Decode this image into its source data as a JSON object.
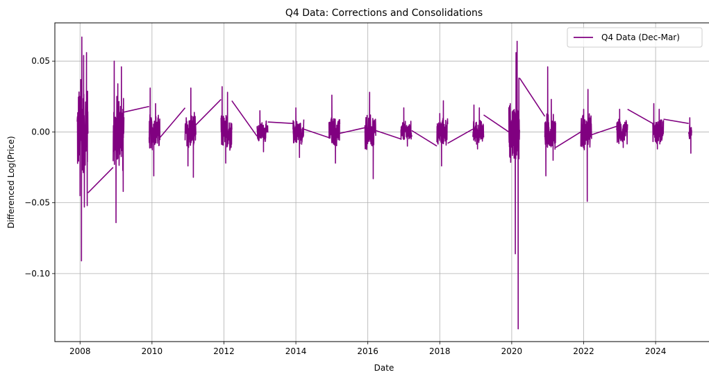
{
  "chart_data": {
    "type": "line",
    "title": "Q4 Data: Corrections and Consolidations",
    "xlabel": "Date",
    "ylabel": "Differenced Log(Price)",
    "xlim": [
      2007.3,
      2025.6
    ],
    "ylim": [
      -0.148,
      0.077
    ],
    "x_ticks": [
      2008,
      2010,
      2012,
      2014,
      2016,
      2018,
      2020,
      2022,
      2024
    ],
    "y_ticks": [
      0.05,
      0.0,
      -0.05,
      -0.1
    ],
    "y_tick_labels": [
      "0.05",
      "0.00",
      "−0.05",
      "−0.10"
    ],
    "grid": true,
    "legend_position": "top-right",
    "series": [
      {
        "name": "Q4 Data (Dec-Mar)",
        "color": "#800080",
        "seasons": [
          {
            "start": 2007.92,
            "end": 2008.22,
            "amp": 0.03,
            "spikes": [
              [
                2008.0,
                -0.045
              ],
              [
                2008.02,
                0.037
              ],
              [
                2008.04,
                -0.091
              ],
              [
                2008.05,
                0.067
              ],
              [
                2008.1,
                0.054
              ],
              [
                2008.12,
                -0.053
              ],
              [
                2008.18,
                0.056
              ],
              [
                2008.2,
                -0.052
              ]
            ]
          },
          {
            "start": 2008.92,
            "end": 2009.22,
            "amp": 0.025,
            "spikes": [
              [
                2008.95,
                0.05
              ],
              [
                2009.0,
                -0.064
              ],
              [
                2009.05,
                0.034
              ],
              [
                2009.15,
                0.046
              ],
              [
                2009.2,
                -0.042
              ]
            ]
          },
          {
            "start": 2009.92,
            "end": 2010.22,
            "amp": 0.012,
            "spikes": [
              [
                2009.95,
                0.031
              ],
              [
                2010.05,
                -0.031
              ],
              [
                2010.1,
                0.02
              ]
            ]
          },
          {
            "start": 2010.92,
            "end": 2011.22,
            "amp": 0.012,
            "spikes": [
              [
                2011.0,
                -0.024
              ],
              [
                2011.08,
                0.031
              ],
              [
                2011.15,
                -0.032
              ]
            ]
          },
          {
            "start": 2011.92,
            "end": 2012.22,
            "amp": 0.012,
            "spikes": [
              [
                2011.95,
                0.032
              ],
              [
                2012.05,
                -0.022
              ],
              [
                2012.1,
                0.028
              ]
            ]
          },
          {
            "start": 2012.92,
            "end": 2013.22,
            "amp": 0.007,
            "spikes": [
              [
                2013.0,
                0.015
              ],
              [
                2013.1,
                -0.014
              ]
            ]
          },
          {
            "start": 2013.92,
            "end": 2014.22,
            "amp": 0.008,
            "spikes": [
              [
                2014.0,
                0.017
              ],
              [
                2014.1,
                -0.018
              ]
            ]
          },
          {
            "start": 2014.92,
            "end": 2015.22,
            "amp": 0.01,
            "spikes": [
              [
                2015.0,
                0.026
              ],
              [
                2015.1,
                -0.022
              ]
            ]
          },
          {
            "start": 2015.92,
            "end": 2016.22,
            "amp": 0.012,
            "spikes": [
              [
                2016.05,
                0.028
              ],
              [
                2016.15,
                -0.033
              ]
            ]
          },
          {
            "start": 2016.92,
            "end": 2017.22,
            "amp": 0.007,
            "spikes": [
              [
                2017.0,
                0.017
              ],
              [
                2017.1,
                -0.01
              ]
            ]
          },
          {
            "start": 2017.92,
            "end": 2018.22,
            "amp": 0.009,
            "spikes": [
              [
                2018.0,
                0.013
              ],
              [
                2018.05,
                -0.024
              ],
              [
                2018.1,
                0.022
              ]
            ]
          },
          {
            "start": 2018.92,
            "end": 2019.22,
            "amp": 0.008,
            "spikes": [
              [
                2018.95,
                0.019
              ],
              [
                2019.05,
                -0.012
              ],
              [
                2019.1,
                0.017
              ]
            ]
          },
          {
            "start": 2019.92,
            "end": 2020.22,
            "amp": 0.02,
            "spikes": [
              [
                2019.95,
                0.01
              ],
              [
                2020.1,
                -0.086
              ],
              [
                2020.12,
                0.056
              ],
              [
                2020.15,
                0.064
              ],
              [
                2020.18,
                -0.139
              ],
              [
                2020.2,
                0.038
              ]
            ]
          },
          {
            "start": 2020.92,
            "end": 2021.22,
            "amp": 0.012,
            "spikes": [
              [
                2020.95,
                -0.031
              ],
              [
                2021.0,
                0.046
              ],
              [
                2021.1,
                0.023
              ],
              [
                2021.15,
                -0.02
              ]
            ]
          },
          {
            "start": 2021.92,
            "end": 2022.22,
            "amp": 0.012,
            "spikes": [
              [
                2022.0,
                0.016
              ],
              [
                2022.1,
                -0.049
              ],
              [
                2022.12,
                0.03
              ]
            ]
          },
          {
            "start": 2022.92,
            "end": 2023.22,
            "amp": 0.008,
            "spikes": [
              [
                2023.0,
                0.016
              ],
              [
                2023.1,
                -0.011
              ]
            ]
          },
          {
            "start": 2023.92,
            "end": 2024.22,
            "amp": 0.008,
            "spikes": [
              [
                2023.95,
                0.02
              ],
              [
                2024.05,
                -0.012
              ],
              [
                2024.1,
                0.016
              ]
            ]
          },
          {
            "start": 2024.92,
            "end": 2025.0,
            "amp": 0.005,
            "spikes": [
              [
                2024.95,
                0.01
              ],
              [
                2024.98,
                -0.015
              ]
            ]
          }
        ],
        "bridges": [
          [
            2008.22,
            -0.043,
            2008.92,
            -0.025
          ],
          [
            2009.22,
            0.014,
            2009.92,
            0.018
          ],
          [
            2010.22,
            -0.004,
            2010.92,
            0.017
          ],
          [
            2011.22,
            0.005,
            2011.92,
            0.023
          ],
          [
            2012.22,
            0.022,
            2012.92,
            -0.003
          ],
          [
            2013.22,
            0.007,
            2013.92,
            0.006
          ],
          [
            2014.22,
            0.002,
            2014.92,
            -0.004
          ],
          [
            2015.22,
            -0.001,
            2015.92,
            0.003
          ],
          [
            2016.22,
            0.001,
            2016.92,
            -0.005
          ],
          [
            2017.22,
            0.001,
            2017.92,
            -0.01
          ],
          [
            2018.22,
            -0.008,
            2018.92,
            0.002
          ],
          [
            2019.22,
            0.012,
            2019.92,
            0.0
          ],
          [
            2020.22,
            0.038,
            2020.92,
            0.011
          ],
          [
            2021.22,
            -0.011,
            2021.92,
            0.0
          ],
          [
            2022.22,
            -0.002,
            2022.92,
            0.004
          ],
          [
            2023.22,
            0.016,
            2023.92,
            0.006
          ],
          [
            2024.22,
            0.009,
            2024.92,
            0.006
          ]
        ]
      }
    ]
  }
}
